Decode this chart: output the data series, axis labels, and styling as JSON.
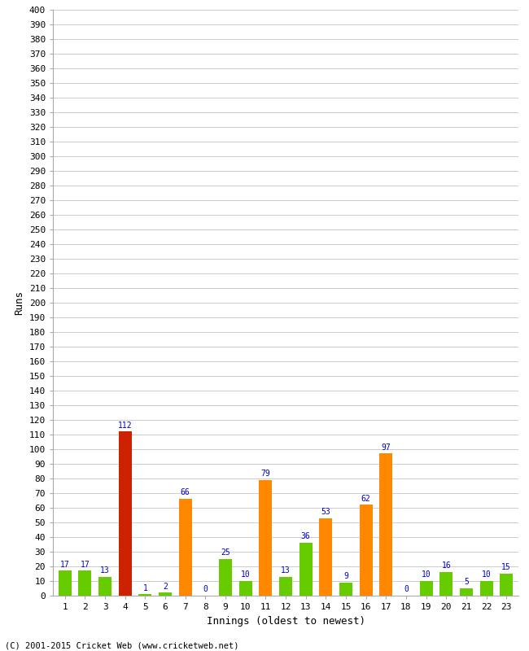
{
  "innings": [
    1,
    2,
    3,
    4,
    5,
    6,
    7,
    8,
    9,
    10,
    11,
    12,
    13,
    14,
    15,
    16,
    17,
    18,
    19,
    20,
    21,
    22,
    23
  ],
  "values": [
    17,
    17,
    13,
    112,
    1,
    2,
    66,
    0,
    25,
    10,
    79,
    13,
    36,
    53,
    9,
    62,
    97,
    0,
    10,
    16,
    5,
    10,
    15
  ],
  "colors": [
    "#66cc00",
    "#66cc00",
    "#66cc00",
    "#cc2200",
    "#66cc00",
    "#66cc00",
    "#ff8800",
    "#ff8800",
    "#66cc00",
    "#66cc00",
    "#ff8800",
    "#66cc00",
    "#66cc00",
    "#ff8800",
    "#66cc00",
    "#ff8800",
    "#ff8800",
    "#ff8800",
    "#66cc00",
    "#66cc00",
    "#66cc00",
    "#66cc00",
    "#66cc00"
  ],
  "xlabel": "Innings (oldest to newest)",
  "ylabel": "Runs",
  "ylim": [
    0,
    400
  ],
  "ytick_step": 10,
  "label_color": "#0000cc",
  "background_color": "#ffffff",
  "grid_color": "#cccccc",
  "footer": "(C) 2001-2015 Cricket Web (www.cricketweb.net)",
  "bar_width": 0.65
}
